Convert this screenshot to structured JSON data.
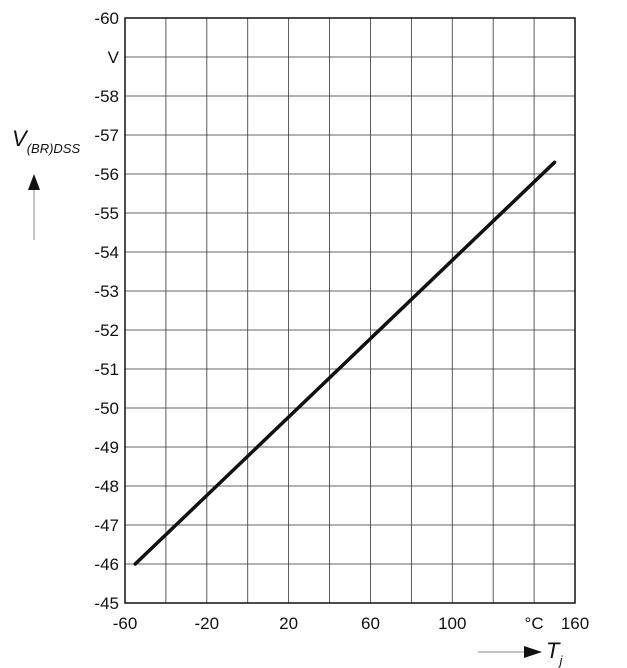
{
  "chart_data": {
    "type": "line",
    "title": "",
    "ylabel_symbol": "V",
    "ylabel_subscript": "(BR)DSS",
    "xlabel_symbol": "T",
    "xlabel_subscript": "j",
    "y_unit": "V",
    "x_unit": "°C",
    "xlim": [
      -60,
      160
    ],
    "ylim": [
      -45,
      -60
    ],
    "x_ticks": [
      "-60",
      "-20",
      "20",
      "60",
      "100",
      "160"
    ],
    "y_ticks": [
      "-45",
      "-46",
      "-47",
      "-48",
      "-49",
      "-50",
      "-51",
      "-52",
      "-53",
      "-54",
      "-55",
      "-56",
      "-57",
      "-58",
      "-60"
    ],
    "grid": true,
    "legend": "none",
    "series": [
      {
        "x": [
          -55,
          150
        ],
        "y": [
          -46.0,
          -56.3
        ]
      }
    ]
  }
}
